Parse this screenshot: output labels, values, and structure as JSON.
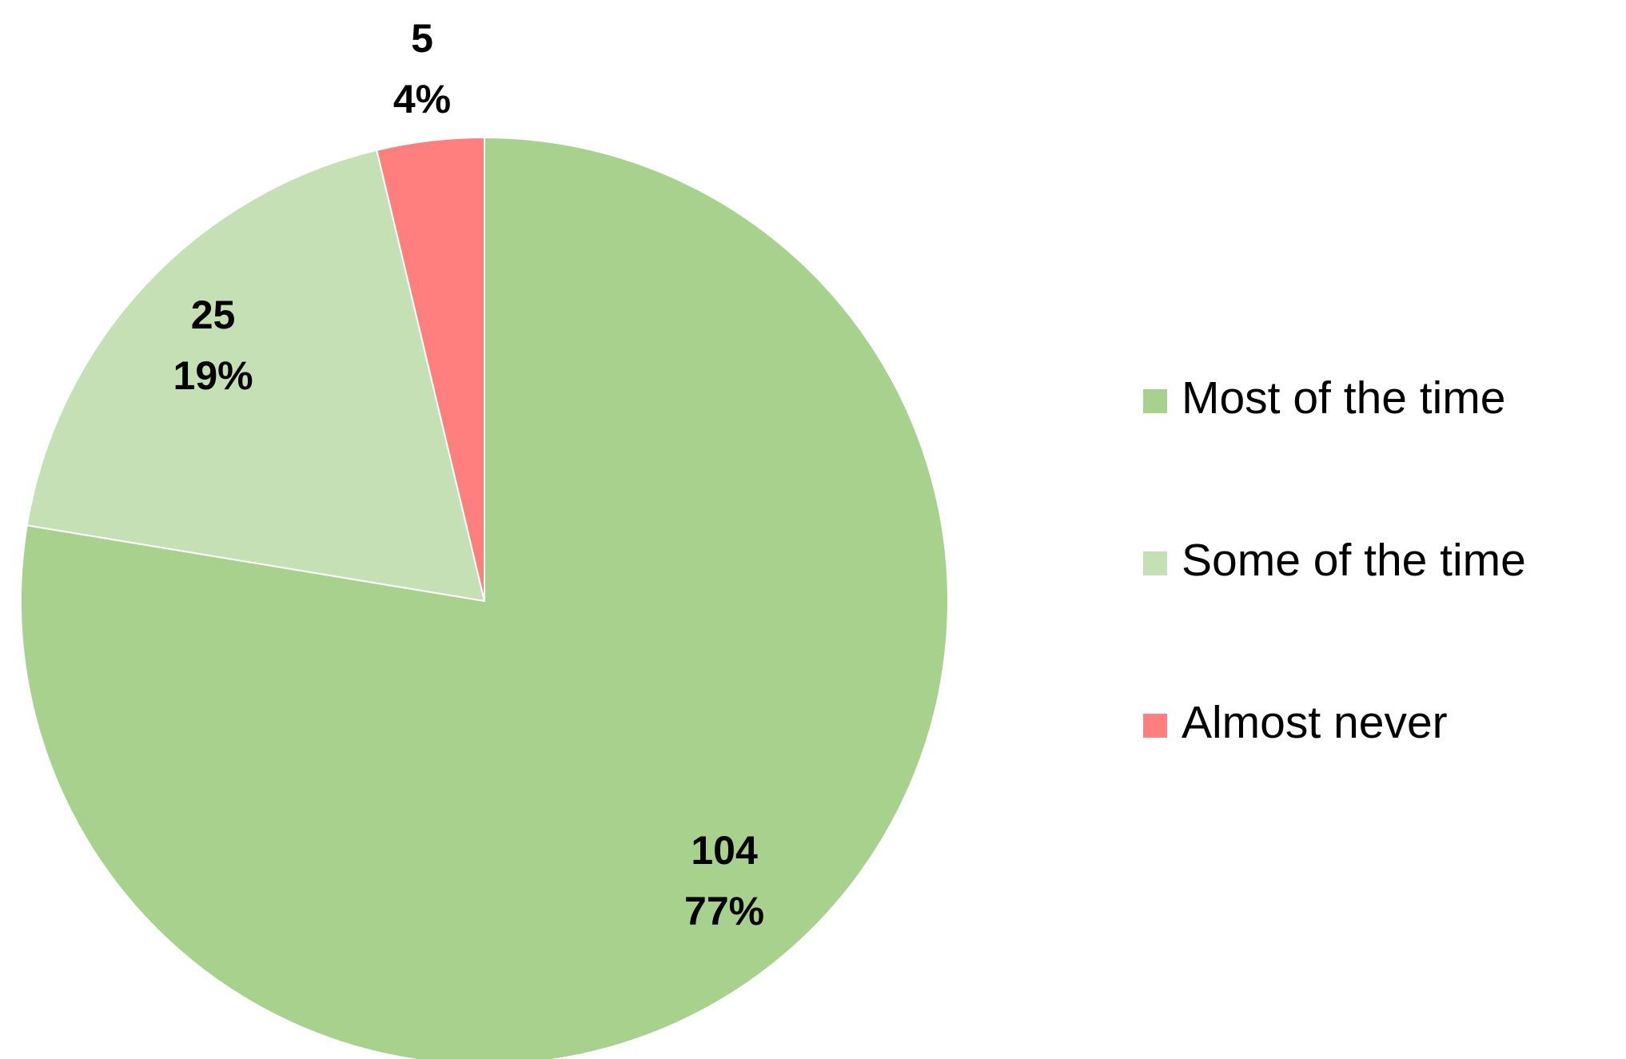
{
  "chart_data": {
    "type": "pie",
    "categories": [
      "Most of the time",
      "Some of the time",
      "Almost never"
    ],
    "values": [
      104,
      25,
      5
    ],
    "percent_labels": [
      "77%",
      "19%",
      "4%"
    ],
    "colors": [
      "#a9d18e",
      "#c5e0b4",
      "#ff7f7f"
    ],
    "start_angle": 0,
    "direction": "clockwise",
    "legend": "right"
  }
}
